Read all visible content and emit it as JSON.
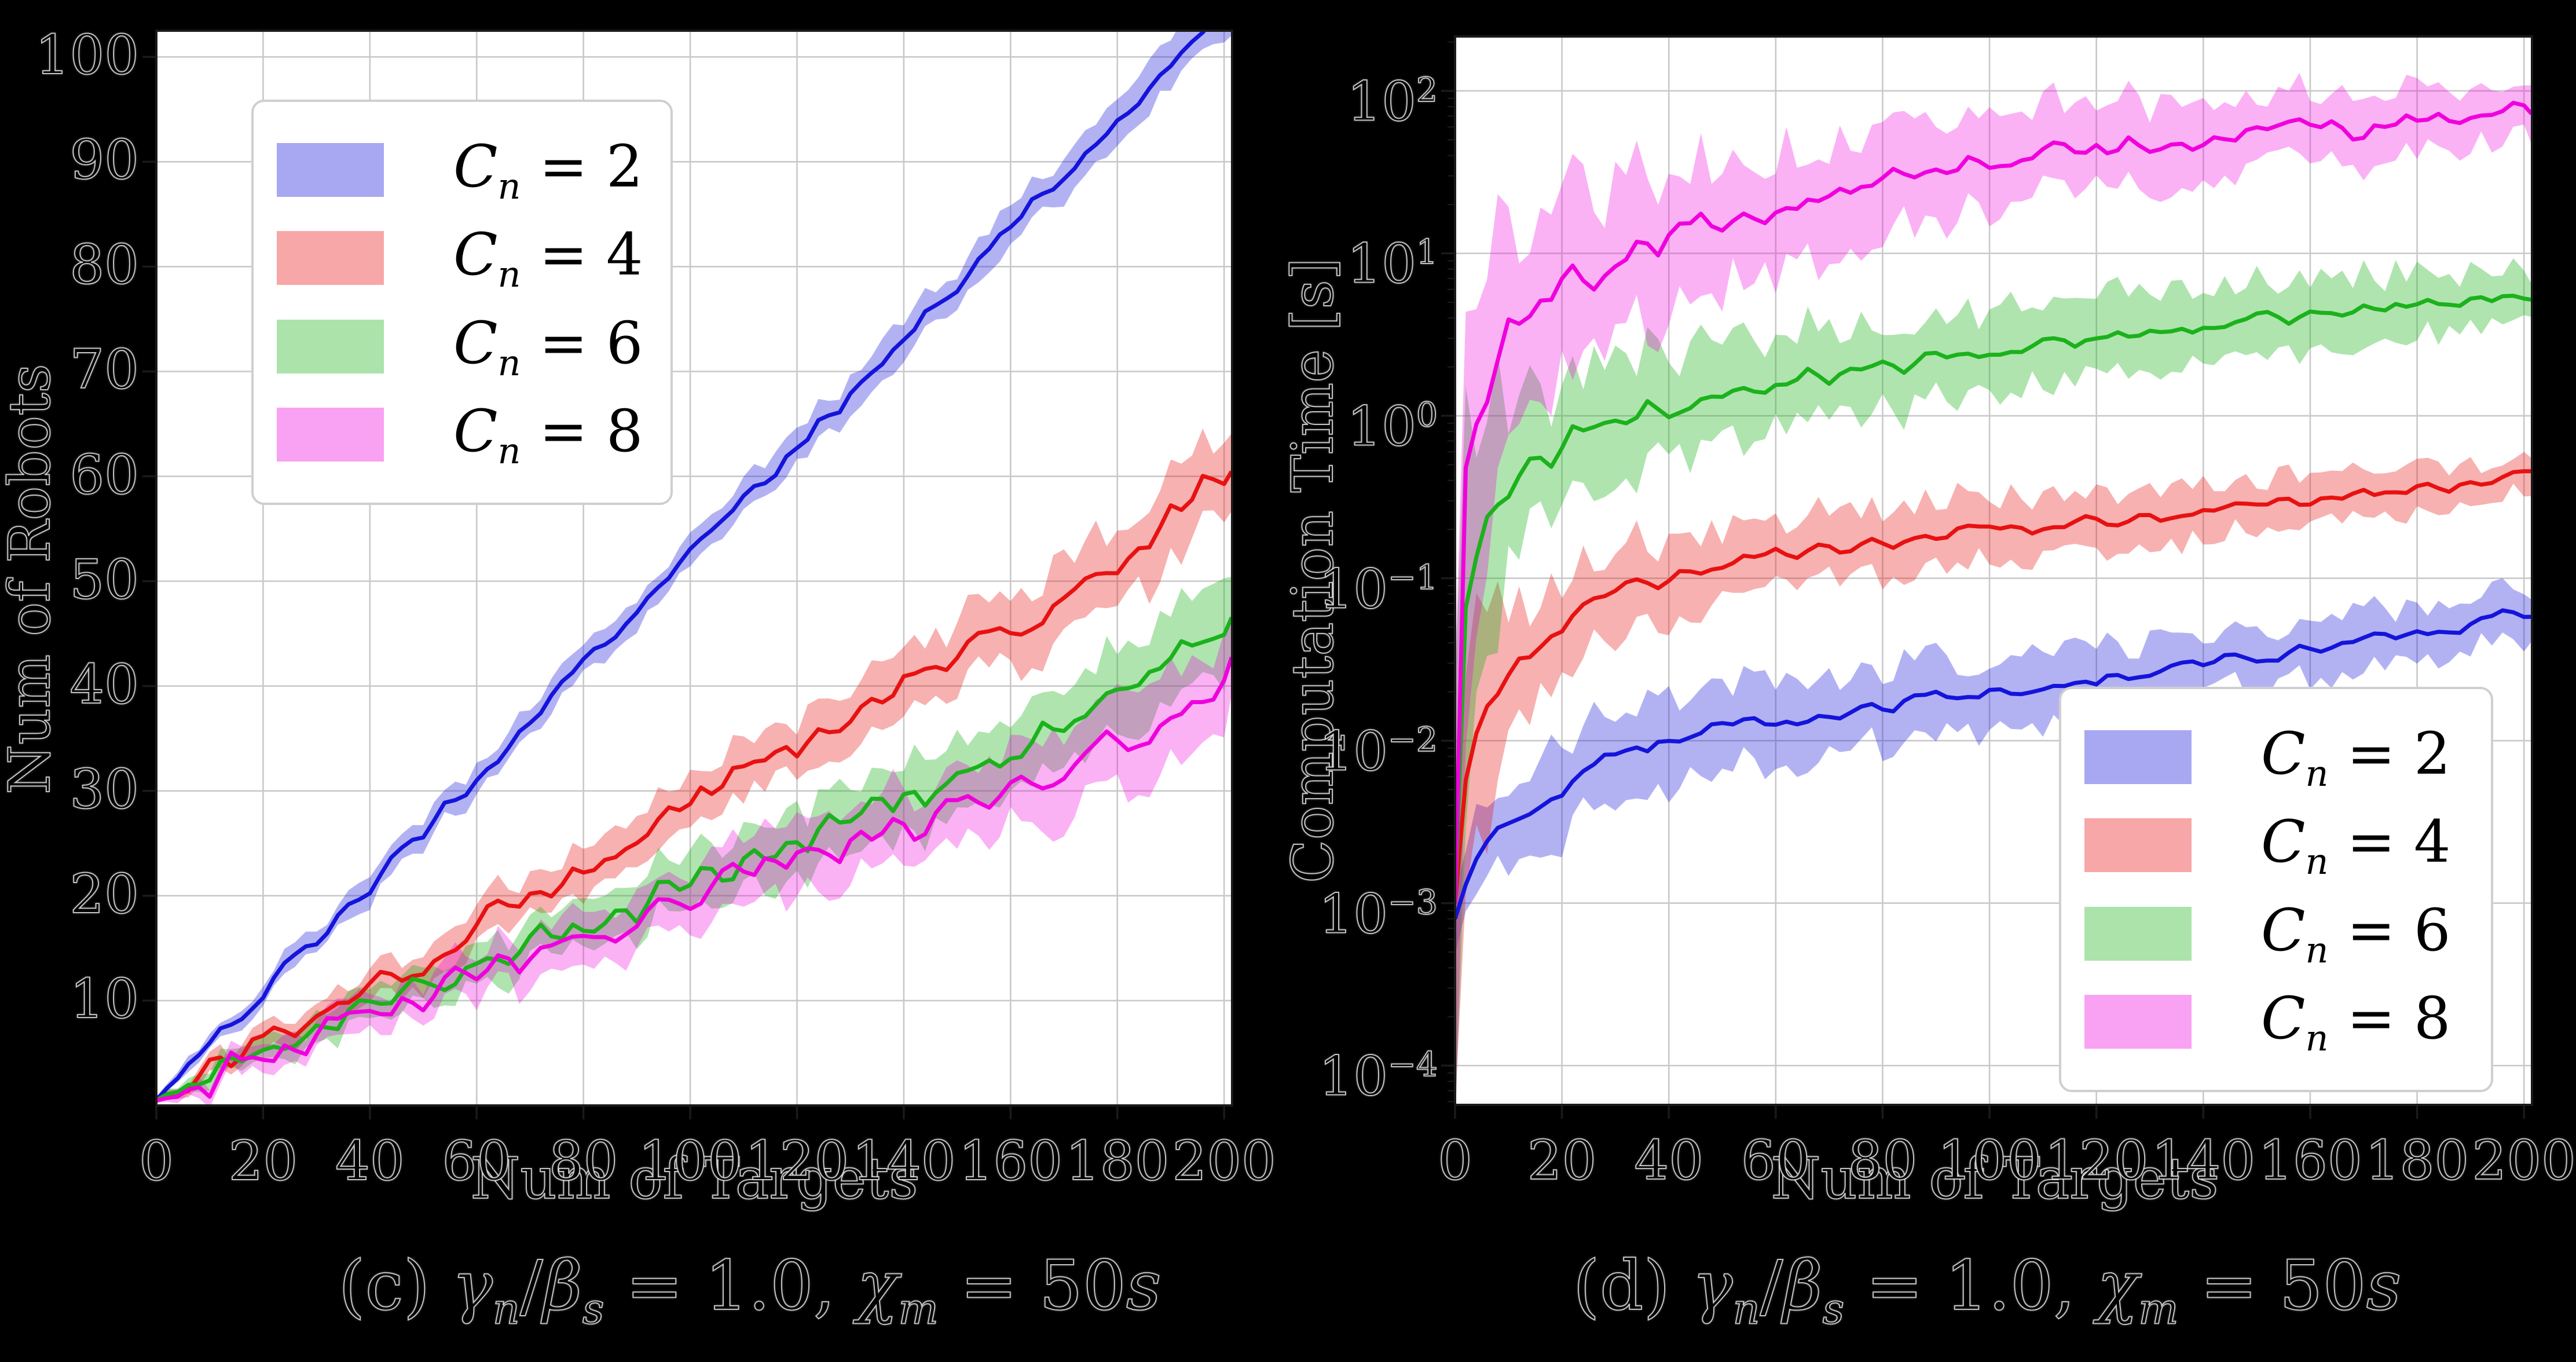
{
  "figure": {
    "background": "#000000",
    "plot_background": "#ffffff",
    "grid_color": "#c9c9c9",
    "spine_color": "#1a1a1a",
    "tick_color": "#1a1a1a",
    "text_color": "#000000",
    "halo_color": "#e1e1e1",
    "legend_border_color": "#cfcfcf"
  },
  "chart_data": [
    {
      "id": "left",
      "type": "line",
      "title": "",
      "xlabel": "Num of Targets",
      "ylabel": "Num of Robots",
      "yscale": "linear",
      "xlim": [
        0,
        201.5
      ],
      "ylim": [
        0,
        102.5
      ],
      "x_ticks": [
        0,
        20,
        40,
        60,
        80,
        100,
        120,
        140,
        160,
        180,
        200
      ],
      "y_ticks": [
        10,
        20,
        30,
        40,
        50,
        60,
        70,
        80,
        90,
        100
      ],
      "grid": true,
      "legend_position": "upper-left",
      "caption": "(c) γn/βs = 1.0, χm = 50s",
      "caption_segments": [
        {
          "t": "(c) ",
          "it": false
        },
        {
          "t": "γ",
          "it": true
        },
        {
          "t": "n",
          "it": true,
          "sub": true
        },
        {
          "t": "/",
          "it": false
        },
        {
          "t": "β",
          "it": true
        },
        {
          "t": "s",
          "it": true,
          "sub": true
        },
        {
          "t": " = 1.0, ",
          "it": false
        },
        {
          "t": "χ",
          "it": true
        },
        {
          "t": "m",
          "it": true,
          "sub": true
        },
        {
          "t": " = 50",
          "it": false
        },
        {
          "t": "s",
          "it": true
        }
      ],
      "x_anchors": [
        0,
        10,
        20,
        30,
        40,
        50,
        60,
        70,
        80,
        90,
        100,
        110,
        120,
        130,
        140,
        150,
        160,
        170,
        180,
        190,
        200
      ],
      "series": [
        {
          "name": "Cn = 2",
          "legend": {
            "symbol": "C",
            "subscript": "n",
            "value": "2"
          },
          "color": "#1414dc",
          "band_opacity": 0.33,
          "seed": 11,
          "jitter": 0.5,
          "values": [
            0.5,
            6,
            11,
            16,
            21,
            26,
            31.5,
            37,
            42,
            47,
            52.5,
            57.5,
            62.5,
            68,
            73,
            78,
            83.5,
            88.5,
            93.5,
            99,
            104
          ],
          "band": [
            0.3,
            0.7,
            0.9,
            1,
            1.1,
            1.2,
            1.2,
            1.3,
            1.3,
            1.4,
            1.4,
            1.5,
            1.5,
            1.6,
            1.7,
            1.7,
            1.8,
            1.9,
            1.9,
            2,
            2.1
          ]
        },
        {
          "name": "Cn = 4",
          "legend": {
            "symbol": "C",
            "subscript": "n",
            "value": "4"
          },
          "color": "#e81111",
          "band_opacity": 0.33,
          "seed": 22,
          "jitter": 0.8,
          "values": [
            0.5,
            3,
            6,
            9,
            11.5,
            14,
            17,
            19.5,
            22,
            25.5,
            29,
            31.5,
            34,
            37,
            40,
            42.5,
            45,
            48,
            52,
            56,
            60.5
          ],
          "band": [
            0.3,
            0.8,
            1,
            1.2,
            1.4,
            1.6,
            1.7,
            1.9,
            2,
            2.1,
            2.3,
            2.4,
            2.5,
            2.7,
            2.8,
            3,
            3.1,
            3.3,
            3.5,
            3.7,
            3.3
          ]
        },
        {
          "name": "Cn = 6",
          "legend": {
            "symbol": "C",
            "subscript": "n",
            "value": "6"
          },
          "color": "#1bb21b",
          "band_opacity": 0.35,
          "seed": 33,
          "jitter": 0.9,
          "values": [
            0.5,
            2.5,
            5,
            7,
            9,
            11.5,
            13.5,
            15.5,
            17,
            19,
            21.5,
            23.5,
            25.5,
            27.5,
            29.5,
            31.5,
            34,
            36,
            38.5,
            42,
            46
          ],
          "band": [
            0.3,
            0.8,
            1.1,
            1.3,
            1.5,
            1.7,
            1.9,
            2,
            2.2,
            2.3,
            2.5,
            2.6,
            2.8,
            2.9,
            3.1,
            3.3,
            3.4,
            3.6,
            3.8,
            4,
            3.6
          ]
        },
        {
          "name": "Cn = 8",
          "legend": {
            "symbol": "C",
            "subscript": "n",
            "value": "8"
          },
          "color": "#f000dd",
          "band_opacity": 0.3,
          "seed": 44,
          "jitter": 0.95,
          "values": [
            0.5,
            2.5,
            4.5,
            6.5,
            8.5,
            10.5,
            12.5,
            14.5,
            16,
            18,
            20.5,
            22,
            23.5,
            25,
            26.5,
            28,
            30,
            32,
            34.5,
            37.5,
            41
          ],
          "band": [
            0.3,
            0.9,
            1.2,
            1.4,
            1.6,
            1.8,
            2,
            2.1,
            2.3,
            2.4,
            2.6,
            2.7,
            2.9,
            3.1,
            3.2,
            3.4,
            3.5,
            3.7,
            3.9,
            4.1,
            3.7
          ]
        }
      ]
    },
    {
      "id": "right",
      "type": "line",
      "title": "",
      "xlabel": "Num of Targets",
      "ylabel": "Computation Time [s]",
      "yscale": "log",
      "xlim": [
        0,
        201.5
      ],
      "ylim_exp": [
        -4.242,
        2.335
      ],
      "x_ticks": [
        0,
        20,
        40,
        60,
        80,
        100,
        120,
        140,
        160,
        180,
        200
      ],
      "y_ticks_exp": [
        2,
        1,
        0,
        -1,
        -2,
        -3,
        -4
      ],
      "y_tick_labels": [
        "10²",
        "10¹",
        "10⁰",
        "10⁻¹",
        "10⁻²",
        "10⁻³",
        "10⁻⁴"
      ],
      "grid": true,
      "legend_position": "lower-right",
      "caption": "(d) γn/βs = 1.0, χm = 50s",
      "caption_segments": [
        {
          "t": "(d) ",
          "it": false
        },
        {
          "t": "γ",
          "it": true
        },
        {
          "t": "n",
          "it": true,
          "sub": true
        },
        {
          "t": "/",
          "it": false
        },
        {
          "t": "β",
          "it": true
        },
        {
          "t": "s",
          "it": true,
          "sub": true
        },
        {
          "t": " = 1.0, ",
          "it": false
        },
        {
          "t": "χ",
          "it": true
        },
        {
          "t": "m",
          "it": true,
          "sub": true
        },
        {
          "t": " = 50",
          "it": false
        },
        {
          "t": "s",
          "it": true
        }
      ],
      "x_anchors": [
        0,
        10,
        20,
        30,
        40,
        50,
        60,
        70,
        80,
        90,
        100,
        110,
        120,
        130,
        140,
        150,
        160,
        170,
        180,
        190,
        200
      ],
      "series": [
        {
          "name": "Cn = 2",
          "legend": {
            "symbol": "C",
            "subscript": "n",
            "value": "2"
          },
          "color": "#1414dc",
          "band_opacity": 0.33,
          "seed": 55,
          "jitter": 0.055,
          "boost": 1.0,
          "values": [
            0.0008,
            0.003,
            0.005,
            0.008,
            0.01,
            0.012,
            0.013,
            0.015,
            0.016,
            0.018,
            0.02,
            0.022,
            0.024,
            0.027,
            0.03,
            0.033,
            0.037,
            0.041,
            0.046,
            0.052,
            0.062
          ],
          "band_ratio": [
            1.6,
            1.9,
            1.85,
            1.8,
            1.8,
            1.75,
            1.7,
            1.7,
            1.65,
            1.65,
            1.6,
            1.6,
            1.55,
            1.55,
            1.5,
            1.5,
            1.5,
            1.45,
            1.45,
            1.4,
            1.4
          ]
        },
        {
          "name": "Cn = 4",
          "legend": {
            "symbol": "C",
            "subscript": "n",
            "value": "4"
          },
          "color": "#e81111",
          "band_opacity": 0.33,
          "seed": 66,
          "jitter": 0.05,
          "boost": 1.5,
          "values": [
            0.001,
            0.025,
            0.05,
            0.08,
            0.1,
            0.12,
            0.135,
            0.15,
            0.16,
            0.175,
            0.2,
            0.21,
            0.225,
            0.24,
            0.26,
            0.28,
            0.3,
            0.32,
            0.35,
            0.38,
            0.42
          ],
          "band_ratio": [
            8,
            2.0,
            1.9,
            1.8,
            1.75,
            1.7,
            1.65,
            1.6,
            1.6,
            1.55,
            1.55,
            1.5,
            1.5,
            1.45,
            1.45,
            1.4,
            1.4,
            1.35,
            1.35,
            1.3,
            1.3
          ]
        },
        {
          "name": "Cn = 6",
          "legend": {
            "symbol": "C",
            "subscript": "n",
            "value": "6"
          },
          "color": "#1bb21b",
          "band_opacity": 0.35,
          "seed": 77,
          "jitter": 0.06,
          "boost": 2.0,
          "values": [
            0.001,
            0.35,
            0.65,
            0.9,
            1.1,
            1.35,
            1.6,
            1.8,
            2.0,
            2.2,
            2.5,
            2.7,
            2.9,
            3.2,
            3.5,
            3.8,
            4.2,
            4.5,
            4.8,
            5.2,
            5.6
          ],
          "band_ratio": [
            12,
            2.5,
            2.3,
            2.2,
            2.1,
            2.0,
            1.95,
            1.9,
            1.85,
            1.8,
            1.8,
            1.75,
            1.7,
            1.7,
            1.65,
            1.6,
            1.6,
            1.55,
            1.5,
            1.5,
            1.45
          ]
        },
        {
          "name": "Cn = 8",
          "legend": {
            "symbol": "C",
            "subscript": "n",
            "value": "8"
          },
          "color": "#f000dd",
          "band_opacity": 0.3,
          "seed": 88,
          "jitter": 0.085,
          "boost": 2.5,
          "values": [
            0.001,
            2.5,
            6,
            9.5,
            13,
            16,
            19,
            23,
            27,
            32,
            38,
            41,
            44,
            47,
            50,
            53,
            56,
            60,
            63,
            67,
            72
          ],
          "band_ratio": [
            20,
            4,
            3.2,
            2.8,
            2.6,
            2.4,
            2.2,
            2.1,
            2.0,
            1.9,
            1.85,
            1.8,
            1.75,
            1.7,
            1.65,
            1.6,
            1.55,
            1.5,
            1.5,
            1.45,
            1.4
          ]
        }
      ]
    }
  ]
}
